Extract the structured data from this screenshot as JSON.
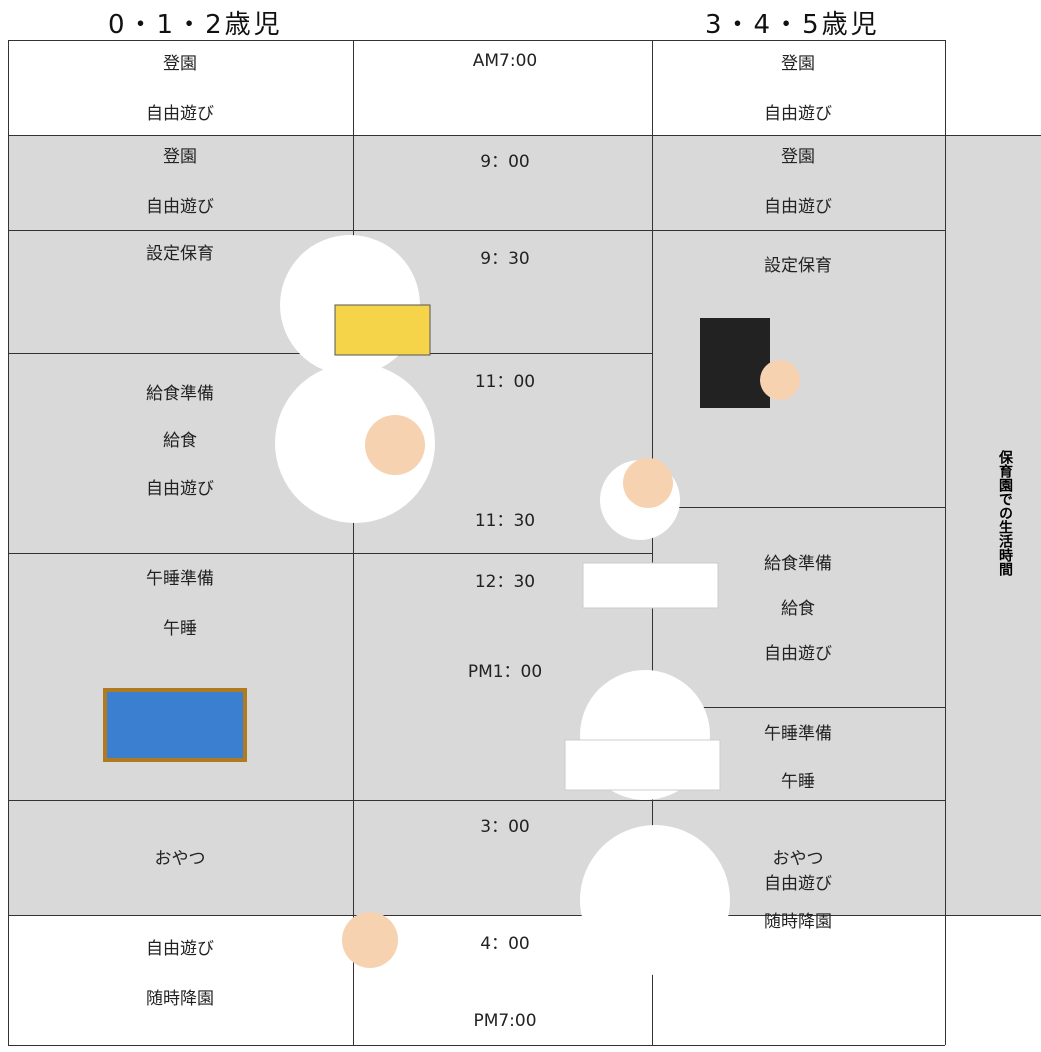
{
  "headers": {
    "left": "0・1・2歳児",
    "right": "3・4・5歳児"
  },
  "side_label": "保育園での生活時間",
  "left_column": [
    [
      "登園",
      "自由遊び"
    ],
    [
      "登園",
      "自由遊び"
    ],
    [
      "設定保育"
    ],
    [
      "給食準備",
      "給食",
      "自由遊び"
    ],
    [
      "午睡準備",
      "午睡"
    ],
    [
      "おやつ"
    ],
    [
      "自由遊び",
      "随時降園"
    ]
  ],
  "times": [
    "AM7:00",
    "9：00",
    "9：30",
    "11：00",
    "11：30",
    "12：30",
    "PM1：00",
    "3：00",
    "4：00",
    "PM7:00"
  ],
  "right_column": [
    [
      "登園",
      "自由遊び"
    ],
    [
      "登園",
      "自由遊び"
    ],
    [
      "設定保育"
    ],
    [
      "給食準備",
      "給食",
      "自由遊び"
    ],
    [
      "午睡準備",
      "午睡"
    ],
    [
      "おやつ"
    ],
    [
      "自由遊び",
      "随時降園"
    ]
  ]
}
